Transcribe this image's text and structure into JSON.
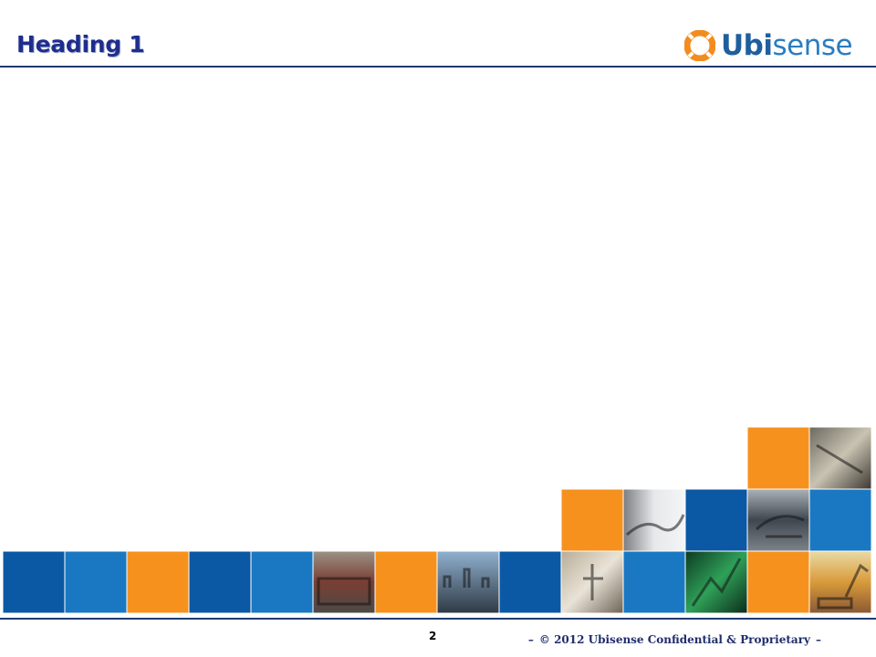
{
  "slide": {
    "heading": "Heading 1",
    "page_number": "2",
    "footer": "© 2012  Ubisense Confidential & Proprietary",
    "footer_dash": "–"
  },
  "logo": {
    "icon": "ubisense-ring-icon",
    "text_bold": "Ubi",
    "text_regular": "sense",
    "colors": {
      "ring": "#f28c1e",
      "text_bold": "#1f5f9e",
      "text_regular": "#2a7cc1"
    }
  },
  "colors": {
    "heading": "#1f2e8c",
    "rule": "#1f3a6e",
    "tile_dark_blue": "#0b58a5",
    "tile_blue": "#1a78c2",
    "tile_orange": "#f6911e"
  },
  "mosaic_tiles": [
    {
      "row": 0,
      "col": 12,
      "kind": "orange"
    },
    {
      "row": 0,
      "col": 13,
      "kind": "photo-machinery"
    },
    {
      "row": 1,
      "col": 9,
      "kind": "orange"
    },
    {
      "row": 1,
      "col": 10,
      "kind": "photo-robot-arm"
    },
    {
      "row": 1,
      "col": 11,
      "kind": "dark_blue"
    },
    {
      "row": 1,
      "col": 12,
      "kind": "photo-aircraft"
    },
    {
      "row": 1,
      "col": 13,
      "kind": "blue"
    },
    {
      "row": 2,
      "col": 0,
      "kind": "dark_blue"
    },
    {
      "row": 2,
      "col": 1,
      "kind": "blue"
    },
    {
      "row": 2,
      "col": 2,
      "kind": "orange"
    },
    {
      "row": 2,
      "col": 3,
      "kind": "dark_blue"
    },
    {
      "row": 2,
      "col": 4,
      "kind": "blue"
    },
    {
      "row": 2,
      "col": 5,
      "kind": "photo-train"
    },
    {
      "row": 2,
      "col": 6,
      "kind": "orange"
    },
    {
      "row": 2,
      "col": 7,
      "kind": "photo-city"
    },
    {
      "row": 2,
      "col": 8,
      "kind": "dark_blue"
    },
    {
      "row": 2,
      "col": 9,
      "kind": "photo-worker"
    },
    {
      "row": 2,
      "col": 10,
      "kind": "blue"
    },
    {
      "row": 2,
      "col": 11,
      "kind": "photo-circuit"
    },
    {
      "row": 2,
      "col": 12,
      "kind": "orange"
    },
    {
      "row": 2,
      "col": 13,
      "kind": "photo-excavator"
    }
  ]
}
